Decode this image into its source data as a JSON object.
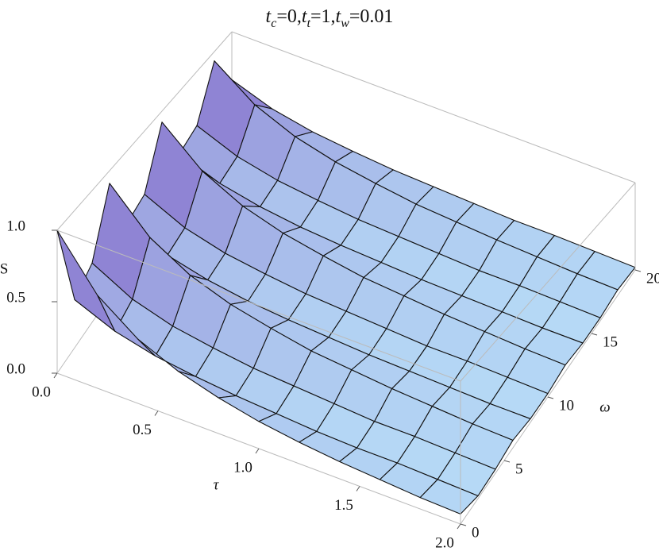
{
  "chart_data": {
    "type": "surface",
    "title_parts": [
      "t",
      "c",
      "=0,",
      "t",
      "t",
      "=1,",
      "t",
      "w",
      "=0.01"
    ],
    "xlabel": "τ",
    "ylabel": "ω",
    "zlabel": "S",
    "x": [
      0,
      0.2,
      0.4,
      0.6,
      0.8,
      1.0,
      1.2,
      1.4,
      1.6,
      1.8,
      2.0
    ],
    "y": [
      0,
      2,
      4,
      6,
      8,
      10,
      12,
      14,
      16,
      18,
      20
    ],
    "z": [
      [
        1.0,
        0.35,
        0.45,
        0.9,
        0.4,
        0.45,
        0.9,
        0.4,
        0.45,
        0.9,
        0.45
      ],
      [
        0.65,
        0.23,
        0.29,
        0.59,
        0.26,
        0.29,
        0.59,
        0.26,
        0.29,
        0.59,
        0.29
      ],
      [
        0.45,
        0.16,
        0.2,
        0.41,
        0.18,
        0.2,
        0.41,
        0.18,
        0.2,
        0.41,
        0.2
      ],
      [
        0.33,
        0.12,
        0.15,
        0.3,
        0.13,
        0.15,
        0.3,
        0.13,
        0.15,
        0.3,
        0.15
      ],
      [
        0.25,
        0.09,
        0.11,
        0.23,
        0.1,
        0.11,
        0.23,
        0.1,
        0.11,
        0.23,
        0.11
      ],
      [
        0.19,
        0.07,
        0.09,
        0.17,
        0.08,
        0.09,
        0.17,
        0.08,
        0.09,
        0.17,
        0.09
      ],
      [
        0.15,
        0.05,
        0.07,
        0.14,
        0.06,
        0.07,
        0.14,
        0.06,
        0.07,
        0.14,
        0.07
      ],
      [
        0.12,
        0.04,
        0.05,
        0.11,
        0.05,
        0.05,
        0.11,
        0.05,
        0.05,
        0.11,
        0.05
      ],
      [
        0.1,
        0.04,
        0.05,
        0.09,
        0.04,
        0.05,
        0.09,
        0.04,
        0.05,
        0.09,
        0.05
      ],
      [
        0.08,
        0.03,
        0.04,
        0.07,
        0.03,
        0.04,
        0.07,
        0.03,
        0.04,
        0.07,
        0.04
      ],
      [
        0.07,
        0.02,
        0.03,
        0.06,
        0.03,
        0.03,
        0.06,
        0.03,
        0.03,
        0.06,
        0.03
      ]
    ],
    "xlim": [
      0,
      2
    ],
    "ylim": [
      0,
      20
    ],
    "zlim": [
      0,
      1
    ],
    "xticks": [
      {
        "value": 0,
        "label": "0.0"
      },
      0.5,
      {
        "value": 1,
        "label": "1.0"
      },
      1.5,
      {
        "value": 2,
        "label": "2.0"
      }
    ],
    "yticks": [
      0,
      5,
      10,
      15,
      20
    ],
    "zticks": [
      {
        "value": 0,
        "label": "0.0"
      },
      0.5,
      {
        "value": 1,
        "label": "1.0"
      }
    ],
    "color_low": "#b8def8",
    "color_high": "#7f62c6"
  }
}
